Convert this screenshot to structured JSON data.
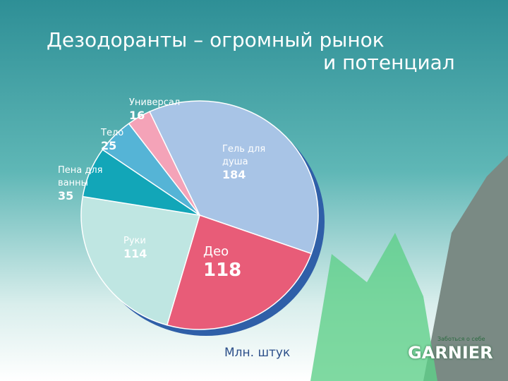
{
  "chart_data": {
    "type": "pie",
    "title": [
      "Дезодоранты – огромный рынок",
      "и потенциал"
    ],
    "categories": [
      "Гель для душа",
      "Део",
      "Руки",
      "Пена для ванны",
      "Тело",
      "Универсал"
    ],
    "values": [
      184,
      118,
      114,
      35,
      25,
      16
    ],
    "colors": [
      "#a8c4e6",
      "#e85c78",
      "#bfe6e2",
      "#12a6b8",
      "#55b4d6",
      "#f4a3b8"
    ],
    "unit_label": "Млн. штук"
  },
  "brand": {
    "tagline": "Заботься о себе",
    "name": "GARNIER"
  }
}
